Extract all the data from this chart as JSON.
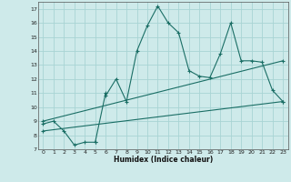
{
  "xlabel": "Humidex (Indice chaleur)",
  "bg_color": "#ceeaea",
  "grid_color": "#a8d4d4",
  "line_color": "#1a6e65",
  "xlim": [
    -0.5,
    23.5
  ],
  "ylim": [
    7,
    17.5
  ],
  "xticks": [
    0,
    1,
    2,
    3,
    4,
    5,
    6,
    7,
    8,
    9,
    10,
    11,
    12,
    13,
    14,
    15,
    16,
    17,
    18,
    19,
    20,
    21,
    22,
    23
  ],
  "yticks": [
    7,
    8,
    9,
    10,
    11,
    12,
    13,
    14,
    15,
    16,
    17
  ],
  "series1_x": [
    0,
    1,
    2,
    3,
    4,
    5,
    5,
    6,
    6,
    7,
    8,
    9,
    10,
    11,
    12,
    13,
    14,
    15,
    16,
    17,
    18,
    19,
    20,
    21,
    22,
    23
  ],
  "series1_y": [
    8.8,
    9.0,
    8.3,
    7.3,
    7.5,
    7.5,
    7.5,
    11.0,
    10.8,
    12.0,
    10.4,
    14.0,
    15.8,
    17.2,
    16.0,
    15.3,
    12.6,
    12.2,
    12.1,
    13.8,
    16.0,
    13.3,
    13.3,
    13.2,
    11.2,
    10.4
  ],
  "series2_x": [
    0,
    23
  ],
  "series2_y": [
    9.0,
    13.3
  ],
  "series3_x": [
    0,
    23
  ],
  "series3_y": [
    8.3,
    10.4
  ]
}
